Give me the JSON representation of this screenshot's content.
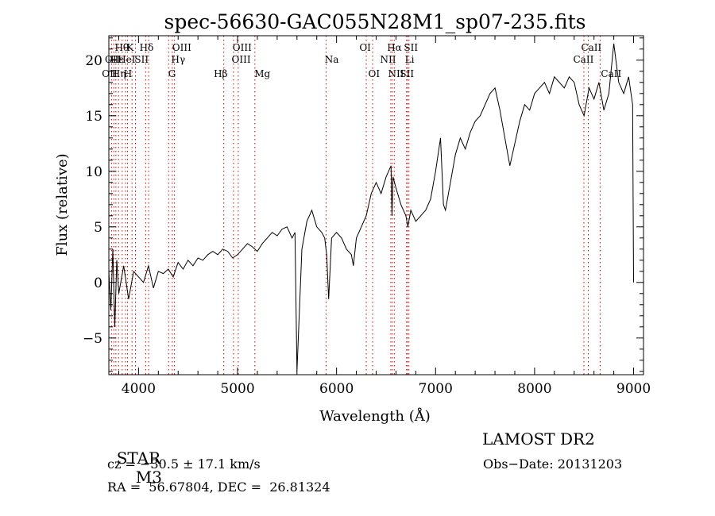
{
  "chart_data": {
    "type": "line",
    "title": "spec-56630-GAC055N28M1_sp07-235.fits",
    "xlabel": "Wavelength (Å)",
    "ylabel": "Flux (relative)",
    "xlim": [
      3700,
      9100
    ],
    "ylim": [
      -8.3,
      22.2
    ],
    "x_ticks": [
      4000,
      5000,
      6000,
      7000,
      8000,
      9000
    ],
    "y_ticks": [
      -5,
      0,
      5,
      10,
      15,
      20
    ],
    "series": [
      {
        "x": [
          3700,
          3720,
          3740,
          3760,
          3780,
          3800,
          3850,
          3900,
          3950,
          4000,
          4050,
          4100,
          4150,
          4200,
          4250,
          4300,
          4350,
          4400,
          4450,
          4500,
          4550,
          4600,
          4650,
          4700,
          4750,
          4800,
          4850,
          4900,
          4950,
          5000,
          5050,
          5100,
          5150,
          5200,
          5250,
          5300,
          5350,
          5400,
          5450,
          5500,
          5550,
          5580,
          5600,
          5650,
          5700,
          5750,
          5800,
          5850,
          5880,
          5900,
          5920,
          5950,
          6000,
          6050,
          6100,
          6150,
          6170,
          6200,
          6250,
          6300,
          6350,
          6400,
          6450,
          6500,
          6550,
          6560,
          6570,
          6600,
          6650,
          6700,
          6720,
          6750,
          6800,
          6850,
          6900,
          6950,
          7000,
          7050,
          7080,
          7100,
          7150,
          7200,
          7250,
          7300,
          7350,
          7400,
          7450,
          7500,
          7550,
          7600,
          7650,
          7700,
          7750,
          7800,
          7850,
          7900,
          7950,
          8000,
          8050,
          8100,
          8150,
          8200,
          8250,
          8300,
          8350,
          8400,
          8450,
          8500,
          8550,
          8600,
          8650,
          8700,
          8750,
          8800,
          8850,
          8900,
          8950,
          8990,
          9000
        ],
        "y": [
          1.0,
          -2.5,
          3.0,
          -4.0,
          2.0,
          -1.0,
          1.5,
          -1.5,
          1.0,
          0.5,
          0.0,
          1.5,
          -0.5,
          1.0,
          0.8,
          1.2,
          0.5,
          1.8,
          1.2,
          2.0,
          1.5,
          2.2,
          2.0,
          2.5,
          2.8,
          2.5,
          3.0,
          2.8,
          2.2,
          2.5,
          3.0,
          3.5,
          3.2,
          2.8,
          3.5,
          4.0,
          4.5,
          4.2,
          4.8,
          5.0,
          4.0,
          4.5,
          -8.0,
          3.0,
          5.5,
          6.5,
          5.0,
          4.5,
          4.0,
          2.5,
          -1.5,
          4.0,
          4.5,
          4.0,
          3.0,
          2.5,
          1.5,
          4.0,
          5.0,
          6.0,
          8.0,
          9.0,
          8.0,
          9.5,
          10.5,
          6.0,
          9.5,
          8.5,
          7.0,
          6.0,
          5.0,
          6.5,
          5.5,
          6.0,
          6.5,
          7.5,
          10.0,
          13.0,
          7.0,
          6.5,
          9.0,
          11.5,
          13.0,
          12.0,
          13.5,
          14.5,
          15.0,
          16.0,
          17.0,
          17.5,
          15.5,
          13.0,
          10.5,
          12.5,
          14.5,
          16.0,
          15.5,
          17.0,
          17.5,
          18.0,
          17.0,
          18.5,
          18.0,
          17.5,
          18.5,
          18.0,
          16.0,
          15.0,
          17.5,
          16.5,
          18.0,
          15.5,
          17.0,
          21.5,
          18.0,
          17.0,
          18.5,
          16.0,
          0.0
        ],
        "color": "#000000"
      }
    ],
    "line_markers": [
      {
        "x": 3727,
        "label": "OII"
      },
      {
        "x": 3750,
        "label": "Hθ"
      },
      {
        "x": 3771,
        "label": "Hη"
      },
      {
        "x": 3798,
        "label": "Hε"
      },
      {
        "x": 3835,
        "label": "Hη"
      },
      {
        "x": 3869,
        "label": "NeIII"
      },
      {
        "x": 3889,
        "label": "HeI"
      },
      {
        "x": 3934,
        "label": "K"
      },
      {
        "x": 3969,
        "label": "H"
      },
      {
        "x": 4072,
        "label": "SII"
      },
      {
        "x": 4102,
        "label": "Hδ"
      },
      {
        "x": 4304,
        "label": "G"
      },
      {
        "x": 4341,
        "label": "Hγ"
      },
      {
        "x": 4363,
        "label": "OIII"
      },
      {
        "x": 4861,
        "label": "Hβ"
      },
      {
        "x": 4959,
        "label": "OIII"
      },
      {
        "x": 5007,
        "label": "OIII"
      },
      {
        "x": 5175,
        "label": "Mg"
      },
      {
        "x": 5894,
        "label": "Na"
      },
      {
        "x": 6300,
        "label": "OI"
      },
      {
        "x": 6364,
        "label": "OI"
      },
      {
        "x": 6548,
        "label": "NII"
      },
      {
        "x": 6563,
        "label": "Hα"
      },
      {
        "x": 6583,
        "label": "NII"
      },
      {
        "x": 6707,
        "label": "Li"
      },
      {
        "x": 6716,
        "label": "SII"
      },
      {
        "x": 6731,
        "label": "SII"
      },
      {
        "x": 8498,
        "label": "CaII"
      },
      {
        "x": 8542,
        "label": "CaII"
      },
      {
        "x": 8662,
        "label": "CaII"
      }
    ],
    "marker_label_rows": [
      {
        "label": "Hθ",
        "x": 3760,
        "row": 0
      },
      {
        "label": "K",
        "x": 3880,
        "row": 0
      },
      {
        "label": "Hδ",
        "x": 4010,
        "row": 0
      },
      {
        "label": "OIII",
        "x": 4340,
        "row": 0
      },
      {
        "label": "OIII",
        "x": 4950,
        "row": 0
      },
      {
        "label": "OI",
        "x": 6230,
        "row": 0
      },
      {
        "label": "Hα",
        "x": 6510,
        "row": 0
      },
      {
        "label": "SII",
        "x": 6680,
        "row": 0
      },
      {
        "label": "CaII",
        "x": 8470,
        "row": 0
      },
      {
        "label": "OII",
        "x": 3660,
        "row": 1
      },
      {
        "label": "Hε",
        "x": 3715,
        "row": 1
      },
      {
        "label": "HeI",
        "x": 3790,
        "row": 1
      },
      {
        "label": "SII",
        "x": 3960,
        "row": 1
      },
      {
        "label": "Hγ",
        "x": 4330,
        "row": 1
      },
      {
        "label": "OIII",
        "x": 4940,
        "row": 1
      },
      {
        "label": "Na",
        "x": 5880,
        "row": 1
      },
      {
        "label": "NII",
        "x": 6440,
        "row": 1
      },
      {
        "label": "Li",
        "x": 6690,
        "row": 1
      },
      {
        "label": "CaII",
        "x": 8390,
        "row": 1
      },
      {
        "label": "OII",
        "x": 3630,
        "row": 2
      },
      {
        "label": "Hη",
        "x": 3730,
        "row": 2
      },
      {
        "label": "H",
        "x": 3850,
        "row": 2
      },
      {
        "label": "G",
        "x": 4300,
        "row": 2
      },
      {
        "label": "Hβ",
        "x": 4760,
        "row": 2
      },
      {
        "label": "Mg",
        "x": 5170,
        "row": 2
      },
      {
        "label": "OI",
        "x": 6320,
        "row": 2
      },
      {
        "label": "NII",
        "x": 6520,
        "row": 2
      },
      {
        "label": "SII",
        "x": 6640,
        "row": 2
      },
      {
        "label": "CaII",
        "x": 8670,
        "row": 2
      }
    ],
    "grid": false,
    "marker_color": "#cc0000"
  },
  "info": {
    "class_label": "STAR",
    "subclass": "M3",
    "survey": "LAMOST DR2",
    "cz": "cz = −30.5 ± 17.1 km/s",
    "obs_date": "Obs−Date: 20131203",
    "coords": "RA =  56.67804, DEC =  26.81324"
  }
}
